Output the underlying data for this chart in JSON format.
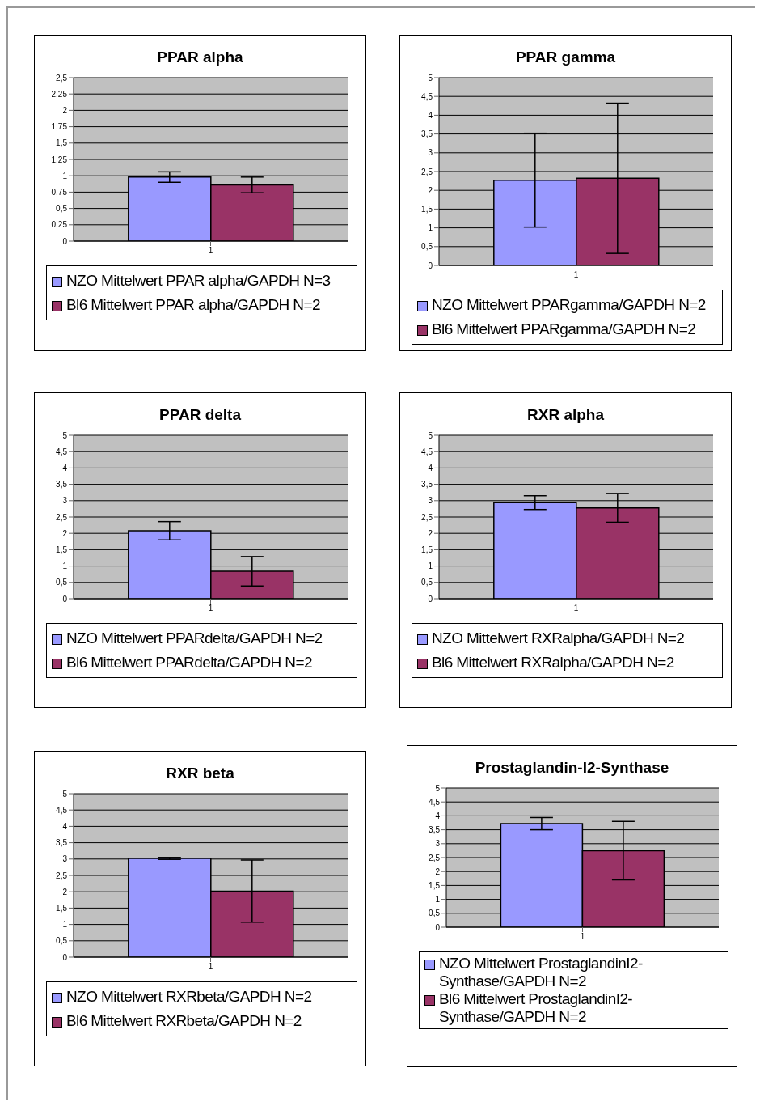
{
  "chart_data": [
    {
      "type": "bar",
      "title": "PPAR alpha",
      "categories": [
        "1"
      ],
      "ylim": [
        0,
        2.5
      ],
      "yticks": [
        0,
        {
          "value": 0.25,
          "label": "0,25"
        },
        {
          "value": 0.5,
          "label": "0,5"
        },
        {
          "value": 0.75,
          "label": "0,75"
        },
        1,
        {
          "value": 1.25,
          "label": "1,25"
        },
        {
          "value": 1.5,
          "label": "1,5"
        },
        {
          "value": 1.75,
          "label": "1,75"
        },
        2,
        {
          "value": 2.25,
          "label": "2,25"
        },
        {
          "value": 2.5,
          "label": "2,5"
        }
      ],
      "grid": "y",
      "legend": "bottom",
      "series": [
        {
          "name": "NZO Mittelwert PPAR alpha/GAPDH N=3",
          "color": "#9999ff",
          "values": [
            0.98
          ],
          "errors": [
            0.08
          ]
        },
        {
          "name": "Bl6 Mittelwert PPAR alpha/GAPDH N=2",
          "color": "#993366",
          "values": [
            0.86
          ],
          "errors": [
            0.12
          ]
        }
      ]
    },
    {
      "type": "bar",
      "title": "PPAR gamma",
      "categories": [
        "1"
      ],
      "ylim": [
        0,
        5
      ],
      "yticks": [
        0,
        {
          "value": 0.5,
          "label": "0,5"
        },
        1,
        {
          "value": 1.5,
          "label": "1,5"
        },
        2,
        {
          "value": 2.5,
          "label": "2,5"
        },
        3,
        {
          "value": 3.5,
          "label": "3,5"
        },
        4,
        {
          "value": 4.5,
          "label": "4,5"
        },
        5
      ],
      "grid": "y",
      "legend": "bottom",
      "series": [
        {
          "name": "NZO Mittelwert PPARgamma/GAPDH N=2",
          "color": "#9999ff",
          "values": [
            2.27
          ],
          "errors": [
            1.25
          ]
        },
        {
          "name": "Bl6 Mittelwert PPARgamma/GAPDH N=2",
          "color": "#993366",
          "values": [
            2.32
          ],
          "errors": [
            2.0
          ]
        }
      ]
    },
    {
      "type": "bar",
      "title": "PPAR delta",
      "categories": [
        "1"
      ],
      "ylim": [
        0,
        5
      ],
      "yticks": [
        0,
        {
          "value": 0.5,
          "label": "0,5"
        },
        1,
        {
          "value": 1.5,
          "label": "1,5"
        },
        2,
        {
          "value": 2.5,
          "label": "2,5"
        },
        3,
        {
          "value": 3.5,
          "label": "3,5"
        },
        4,
        {
          "value": 4.5,
          "label": "4,5"
        },
        5
      ],
      "grid": "y",
      "legend": "bottom",
      "series": [
        {
          "name": "NZO Mittelwert PPARdelta/GAPDH N=2",
          "color": "#9999ff",
          "values": [
            2.08
          ],
          "errors": [
            0.28
          ]
        },
        {
          "name": "Bl6 Mittelwert PPARdelta/GAPDH N=2",
          "color": "#993366",
          "values": [
            0.84
          ],
          "errors": [
            0.45
          ]
        }
      ]
    },
    {
      "type": "bar",
      "title": "RXR alpha",
      "categories": [
        "1"
      ],
      "ylim": [
        0,
        5
      ],
      "yticks": [
        0,
        {
          "value": 0.5,
          "label": "0,5"
        },
        1,
        {
          "value": 1.5,
          "label": "1,5"
        },
        2,
        {
          "value": 2.5,
          "label": "2,5"
        },
        3,
        {
          "value": 3.5,
          "label": "3,5"
        },
        4,
        {
          "value": 4.5,
          "label": "4,5"
        },
        5
      ],
      "grid": "y",
      "legend": "bottom",
      "series": [
        {
          "name": "NZO Mittelwert RXRalpha/GAPDH N=2",
          "color": "#9999ff",
          "values": [
            2.94
          ],
          "errors": [
            0.21
          ]
        },
        {
          "name": "Bl6 Mittelwert RXRalpha/GAPDH N=2",
          "color": "#993366",
          "values": [
            2.78
          ],
          "errors": [
            0.44
          ]
        }
      ]
    },
    {
      "type": "bar",
      "title": "RXR beta",
      "categories": [
        "1"
      ],
      "ylim": [
        0,
        5
      ],
      "yticks": [
        0,
        {
          "value": 0.5,
          "label": "0,5"
        },
        1,
        {
          "value": 1.5,
          "label": "1,5"
        },
        2,
        {
          "value": 2.5,
          "label": "2,5"
        },
        3,
        {
          "value": 3.5,
          "label": "3,5"
        },
        4,
        {
          "value": 4.5,
          "label": "4,5"
        },
        5
      ],
      "grid": "y",
      "legend": "bottom",
      "series": [
        {
          "name": "NZO Mittelwert RXRbeta/GAPDH N=2",
          "color": "#9999ff",
          "values": [
            3.02
          ],
          "errors": [
            0.03
          ]
        },
        {
          "name": "Bl6 Mittelwert RXRbeta/GAPDH N=2",
          "color": "#993366",
          "values": [
            2.02
          ],
          "errors": [
            0.95
          ]
        }
      ]
    },
    {
      "type": "bar",
      "title": "Prostaglandin-I2-Synthase",
      "categories": [
        "1"
      ],
      "ylim": [
        0,
        5
      ],
      "yticks": [
        0,
        {
          "value": 0.5,
          "label": "0,5"
        },
        1,
        {
          "value": 1.5,
          "label": "1,5"
        },
        2,
        {
          "value": 2.5,
          "label": "2,5"
        },
        3,
        {
          "value": 3.5,
          "label": "3,5"
        },
        4,
        {
          "value": 4.5,
          "label": "4,5"
        },
        5
      ],
      "grid": "y",
      "legend": "bottom",
      "series": [
        {
          "name": "NZO Mittelwert ProstaglandinI2-Synthase/GAPDH N=2",
          "color": "#9999ff",
          "values": [
            3.72
          ],
          "errors": [
            0.22
          ]
        },
        {
          "name": "Bl6 Mittelwert ProstaglandinI2-Synthase/GAPDH N=2",
          "color": "#993366",
          "values": [
            2.75
          ],
          "errors": [
            1.05
          ]
        }
      ]
    }
  ]
}
